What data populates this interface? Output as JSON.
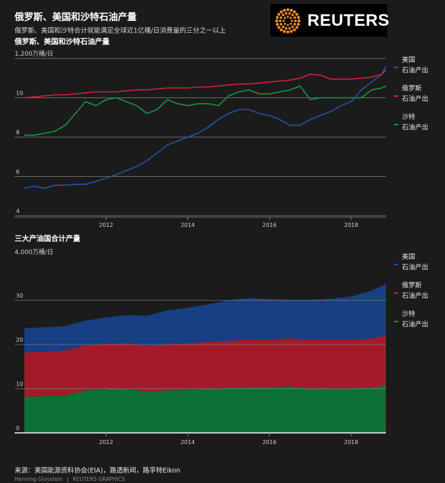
{
  "header": {
    "title": "俄罗斯、美国和沙特石油产量",
    "subtitle": "俄罗斯、美国和沙特合计就能满足全球近1亿桶/日消费量的三分之一以上"
  },
  "logo": {
    "text": "REUTERS"
  },
  "footer": {
    "source": "来源：美国能源资料协会(EIA)，路透新闻，路孚特Eikon",
    "author": "Henning Gloystein",
    "separator": "|",
    "graphics": "REUTERS GRAPHICS"
  },
  "colors": {
    "us": "#1f57a8",
    "russia": "#d0253a",
    "saudi": "#139a45",
    "us_area": "#173f84",
    "russia_area": "#a31b2b",
    "saudi_area": "#0b7137"
  },
  "chart_data": [
    {
      "type": "line",
      "heading": "俄罗斯、美国和沙特石油产量",
      "unit_label": "1,200万桶/日",
      "x_ticks": [
        "2012",
        "2014",
        "2016",
        "2018"
      ],
      "y_ticks": [
        "4",
        "6",
        "8",
        "10"
      ],
      "ylim": [
        4,
        12
      ],
      "x": [
        2010.0,
        2010.25,
        2010.5,
        2010.75,
        2011.0,
        2011.25,
        2011.5,
        2011.75,
        2012.0,
        2012.25,
        2012.5,
        2012.75,
        2013.0,
        2013.25,
        2013.5,
        2013.75,
        2014.0,
        2014.25,
        2014.5,
        2014.75,
        2015.0,
        2015.25,
        2015.5,
        2015.75,
        2016.0,
        2016.25,
        2016.5,
        2016.75,
        2017.0,
        2017.25,
        2017.5,
        2017.75,
        2018.0,
        2018.25,
        2018.5,
        2018.75,
        2018.85
      ],
      "series": [
        {
          "name": "美国",
          "sublabel": "石油产出",
          "key": "us",
          "values": [
            5.4,
            5.5,
            5.4,
            5.55,
            5.55,
            5.6,
            5.6,
            5.75,
            5.9,
            6.1,
            6.3,
            6.5,
            6.8,
            7.2,
            7.6,
            7.8,
            8.0,
            8.2,
            8.5,
            8.9,
            9.2,
            9.4,
            9.4,
            9.2,
            9.1,
            8.9,
            8.6,
            8.6,
            8.9,
            9.1,
            9.3,
            9.6,
            9.8,
            10.4,
            10.8,
            11.2,
            11.6
          ]
        },
        {
          "name": "俄罗斯",
          "sublabel": "石油产出",
          "key": "russia",
          "values": [
            10.0,
            10.05,
            10.1,
            10.15,
            10.15,
            10.2,
            10.25,
            10.3,
            10.3,
            10.3,
            10.35,
            10.4,
            10.4,
            10.45,
            10.5,
            10.5,
            10.5,
            10.55,
            10.55,
            10.6,
            10.65,
            10.7,
            10.7,
            10.75,
            10.8,
            10.85,
            10.9,
            11.0,
            11.2,
            11.15,
            10.95,
            10.95,
            10.95,
            11.0,
            11.05,
            11.2,
            11.4
          ]
        },
        {
          "name": "沙特",
          "sublabel": "石油产出",
          "key": "saudi",
          "values": [
            8.1,
            8.1,
            8.2,
            8.3,
            8.6,
            9.2,
            9.8,
            9.6,
            9.9,
            10.0,
            9.8,
            9.6,
            9.2,
            9.4,
            9.9,
            9.7,
            9.6,
            9.7,
            9.7,
            9.6,
            10.1,
            10.3,
            10.4,
            10.2,
            10.2,
            10.3,
            10.4,
            10.6,
            9.9,
            10.0,
            10.0,
            10.0,
            10.0,
            10.0,
            10.4,
            10.5,
            10.6
          ]
        }
      ]
    },
    {
      "type": "area",
      "heading": "三大产油国合计产量",
      "unit_label": "4,000万桶/日",
      "x_ticks": [
        "2012",
        "2014",
        "2016",
        "2018"
      ],
      "y_ticks": [
        "0",
        "10",
        "20",
        "30"
      ],
      "ylim": [
        0,
        40
      ],
      "stacked": true,
      "x": [
        2010.0,
        2010.5,
        2011.0,
        2011.5,
        2012.0,
        2012.5,
        2013.0,
        2013.5,
        2014.0,
        2014.5,
        2015.0,
        2015.5,
        2016.0,
        2016.5,
        2017.0,
        2017.5,
        2018.0,
        2018.5,
        2018.85
      ],
      "series": [
        {
          "name": "沙特",
          "sublabel": "石油产出",
          "key": "saudi",
          "values": [
            8.2,
            8.3,
            8.5,
            9.6,
            9.9,
            10.0,
            9.3,
            9.6,
            9.8,
            10.0,
            10.2,
            10.4,
            10.4,
            10.5,
            10.0,
            10.1,
            10.1,
            10.3,
            10.7
          ]
        },
        {
          "name": "俄罗斯",
          "sublabel": "石油产出",
          "key": "russia",
          "values": [
            10.0,
            10.1,
            10.15,
            10.25,
            10.3,
            10.35,
            10.4,
            10.5,
            10.5,
            10.55,
            10.65,
            10.7,
            10.8,
            10.9,
            11.2,
            10.95,
            11.0,
            11.1,
            11.4
          ]
        },
        {
          "name": "美国",
          "sublabel": "石油产出",
          "key": "us",
          "values": [
            5.5,
            5.5,
            5.5,
            5.6,
            5.9,
            6.3,
            6.8,
            7.6,
            8.0,
            8.5,
            9.2,
            9.4,
            9.1,
            8.7,
            8.9,
            9.3,
            9.8,
            10.8,
            11.6
          ]
        }
      ]
    }
  ]
}
